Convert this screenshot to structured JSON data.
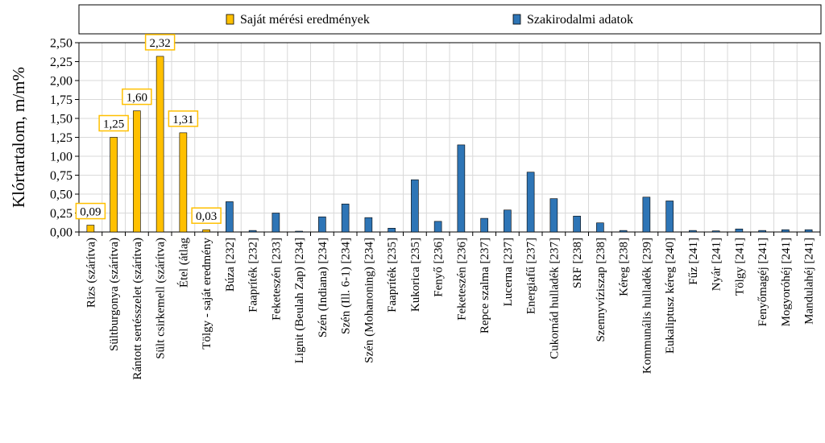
{
  "chart_data": {
    "type": "bar",
    "ylabel": "Klórtartalom, m/m%",
    "ylim": [
      0,
      2.5
    ],
    "ytick_step": 0.25,
    "grid": true,
    "legend_position": "top",
    "series": [
      {
        "name": "Saját mérési eredmények",
        "color": "#FFC000"
      },
      {
        "name": "Szakirodalmi adatok",
        "color": "#2E75B6"
      }
    ],
    "categories": [
      "Rizs (szárítva)",
      "Sültburgonya (szárítva)",
      "Rántott sertésszelet (szárítva)",
      "Sült csirkemell (szárítva)",
      "Étel (átlag",
      "Tölgy - saját eredmény",
      "Búza [232]",
      "Faapríték [232]",
      "Feketeszén [233]",
      "Lignit (Beulah Zap) [234]",
      "Szén (Indiana) [234]",
      "Szén (Ill. 6-1) [234]",
      "Szén (Mohanoning) [234]",
      "Faapríték [235]",
      "Kukorica [235]",
      "Fenyő [236]",
      "Feketeszén [236]",
      "Repce szalma [237]",
      "Lucerna [237]",
      "Energiafű [237]",
      "Cukornád hulladék [237]",
      "SRF [238]",
      "Szennyvíziszap [238]",
      "Kéreg [238]",
      "Kommunális hulladék [239]",
      "Eukaliptusz kéreg [240]",
      "Fűz [241]",
      "Nyár [241]",
      "Tölgy [241]",
      "Fenyőmagéj [241]",
      "Mogyoróhéj [241]",
      "Mandulahéj [241]"
    ],
    "values": [
      0.09,
      1.25,
      1.6,
      2.32,
      1.31,
      0.03,
      0.4,
      0.02,
      0.25,
      0.005,
      0.2,
      0.37,
      0.19,
      0.05,
      0.69,
      0.14,
      1.15,
      0.18,
      0.29,
      0.79,
      0.44,
      0.21,
      0.12,
      0.02,
      0.46,
      0.41,
      0.02,
      0.015,
      0.04,
      0.02,
      0.03,
      0.03
    ],
    "series_index": [
      0,
      0,
      0,
      0,
      0,
      0,
      1,
      1,
      1,
      1,
      1,
      1,
      1,
      1,
      1,
      1,
      1,
      1,
      1,
      1,
      1,
      1,
      1,
      1,
      1,
      1,
      1,
      1,
      1,
      1,
      1,
      1
    ],
    "data_labels": [
      "0,09",
      "1,25",
      "1,60",
      "2,32",
      "1,31",
      "0,03",
      "",
      "",
      "",
      "",
      "",
      "",
      "",
      "",
      "",
      "",
      "",
      "",
      "",
      "",
      "",
      "",
      "",
      "",
      "",
      "",
      "",
      "",
      "",
      "",
      "",
      ""
    ],
    "label_box_color": "#FFC000"
  }
}
